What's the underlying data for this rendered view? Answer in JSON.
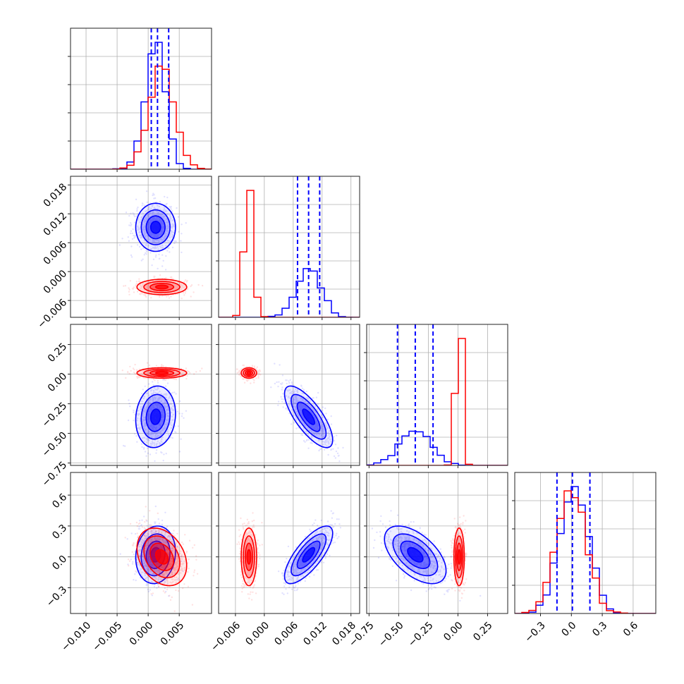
{
  "chart_data": {
    "type": "corner",
    "grid": true,
    "colors": {
      "series_a": "#0000ff",
      "series_b": "#ff0000"
    },
    "dimensions": [
      {
        "range": [
          -0.0125,
          0.0102
        ],
        "ticks": [
          -0.01,
          -0.005,
          0.0,
          0.005
        ],
        "tick_labels": [
          "−0.010",
          "−0.005",
          "0.000",
          "0.005"
        ]
      },
      {
        "range": [
          -0.0095,
          0.0198
        ],
        "ticks": [
          -0.006,
          0.0,
          0.006,
          0.012,
          0.018
        ],
        "tick_labels": [
          "−0.006",
          "0.000",
          "0.006",
          "0.012",
          "0.018"
        ]
      },
      {
        "range": [
          -0.77,
          0.42
        ],
        "ticks": [
          -0.75,
          -0.5,
          -0.25,
          0.0,
          0.25
        ],
        "tick_labels": [
          "−0.75",
          "−0.50",
          "−0.25",
          "0.00",
          "0.25"
        ]
      },
      {
        "range": [
          -0.55,
          0.82
        ],
        "ticks": [
          -0.3,
          0.0,
          0.3,
          0.6
        ],
        "tick_labels": [
          "−0.3",
          "0.0",
          "0.3",
          "0.6"
        ]
      }
    ],
    "series": [
      {
        "color": "#0000ff",
        "quantiles": [
          [
            0.0005,
            0.0015,
            0.0033
          ],
          [
            0.0069,
            0.0092,
            0.0115
          ],
          [
            -0.51,
            -0.36,
            -0.21
          ],
          [
            -0.14,
            0.01,
            0.18
          ]
        ],
        "mean": [
          0.0012,
          0.0092,
          -0.36,
          0.02
        ],
        "sd": [
          0.0016,
          0.0025,
          0.13,
          0.14
        ],
        "cov": [
          [
            1.0,
            0.0,
            0.1,
            0.1
          ],
          [
            0.0,
            1.0,
            -0.75,
            0.75
          ],
          [
            0.1,
            -0.75,
            1.0,
            -0.55
          ],
          [
            0.1,
            0.75,
            -0.55,
            1.0
          ]
        ]
      },
      {
        "color": "#ff0000",
        "quantiles": [],
        "mean": [
          0.0022,
          -0.0032,
          0.01,
          0.0
        ],
        "sd": [
          0.002,
          0.0008,
          0.022,
          0.14
        ],
        "cov": [
          [
            1.0,
            0.0,
            0.0,
            -0.3
          ],
          [
            0.0,
            1.0,
            0.0,
            0.0
          ],
          [
            0.0,
            0.0,
            1.0,
            0.0
          ],
          [
            -0.3,
            0.0,
            0.0,
            1.0
          ]
        ]
      }
    ]
  }
}
